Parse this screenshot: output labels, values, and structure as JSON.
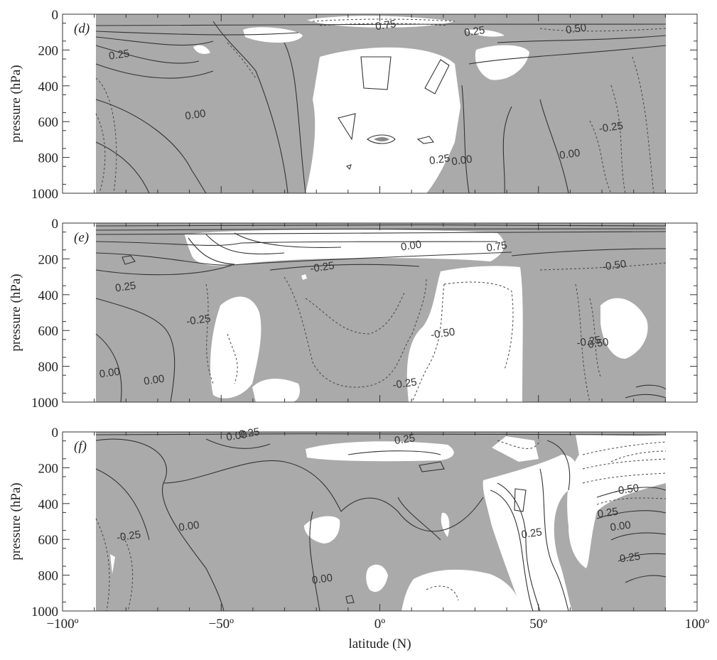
{
  "chart_data": [
    {
      "type": "contour",
      "panel_label": "(d)",
      "xlim": [
        -100,
        100
      ],
      "ylim": [
        1000,
        0
      ],
      "ylabel": "pressure (hPa)",
      "y_ticks": [
        "0",
        "200",
        "400",
        "600",
        "800",
        "1000"
      ],
      "x_ticks": [],
      "xlabel": "",
      "contour_labels": [
        {
          "text": "0.75",
          "lat": 2,
          "p": 80
        },
        {
          "text": "0.25",
          "lat": 30,
          "p": 115
        },
        {
          "text": "0.50",
          "lat": 62,
          "p": 100
        },
        {
          "text": "0.25",
          "lat": -82,
          "p": 245
        },
        {
          "text": "0.00",
          "lat": -58,
          "p": 580
        },
        {
          "text": "0.25",
          "lat": 19,
          "p": 830
        },
        {
          "text": "0.00",
          "lat": 26,
          "p": 835
        },
        {
          "text": "0.00",
          "lat": 60,
          "p": 800
        },
        {
          "text": "-0.25",
          "lat": 73,
          "p": 650
        }
      ]
    },
    {
      "type": "contour",
      "panel_label": "(e)",
      "xlim": [
        -100,
        100
      ],
      "ylim": [
        1000,
        0
      ],
      "ylabel": "pressure (hPa)",
      "y_ticks": [
        "0",
        "200",
        "400",
        "600",
        "800",
        "1000"
      ],
      "x_ticks": [],
      "xlabel": "",
      "contour_labels": [
        {
          "text": "0.00",
          "lat": 10,
          "p": 145
        },
        {
          "text": "0.75",
          "lat": 37,
          "p": 150
        },
        {
          "text": "-0.25",
          "lat": -18,
          "p": 265
        },
        {
          "text": "-0.50",
          "lat": 74,
          "p": 255
        },
        {
          "text": "0.25",
          "lat": -80,
          "p": 375
        },
        {
          "text": "-0.25",
          "lat": -57,
          "p": 560
        },
        {
          "text": "-0.50",
          "lat": 20,
          "p": 635
        },
        {
          "text": "-0.25",
          "lat": 66,
          "p": 680
        },
        {
          "text": "0.50",
          "lat": 69,
          "p": 690
        },
        {
          "text": "0.00",
          "lat": -85,
          "p": 855
        },
        {
          "text": "0.00",
          "lat": -71,
          "p": 895
        },
        {
          "text": "-0.25",
          "lat": 8,
          "p": 915
        }
      ]
    },
    {
      "type": "contour",
      "panel_label": "(f)",
      "xlim": [
        -100,
        100
      ],
      "ylim": [
        1000,
        0
      ],
      "ylabel": "pressure (hPa)",
      "y_ticks": [
        "0",
        "200",
        "400",
        "600",
        "800",
        "1000"
      ],
      "x_ticks": [
        "−100º",
        "−50º",
        "0º",
        "50º",
        "100º"
      ],
      "xlabel": "latitude (N)",
      "contour_labels": [
        {
          "text": "0.00",
          "lat": -45,
          "p": 40
        },
        {
          "text": "0.25",
          "lat": -41,
          "p": 25
        },
        {
          "text": "0.25",
          "lat": 8,
          "p": 60
        },
        {
          "text": "-0.50",
          "lat": 78,
          "p": 340
        },
        {
          "text": "0.25",
          "lat": 72,
          "p": 470
        },
        {
          "text": "0.00",
          "lat": 76,
          "p": 545
        },
        {
          "text": "0.25",
          "lat": 48,
          "p": 585
        },
        {
          "text": "0.25",
          "lat": 79,
          "p": 720
        },
        {
          "text": "-0.25",
          "lat": -79,
          "p": 600
        },
        {
          "text": "0.00",
          "lat": -60,
          "p": 545
        },
        {
          "text": "0.00",
          "lat": -18,
          "p": 840
        }
      ]
    }
  ]
}
